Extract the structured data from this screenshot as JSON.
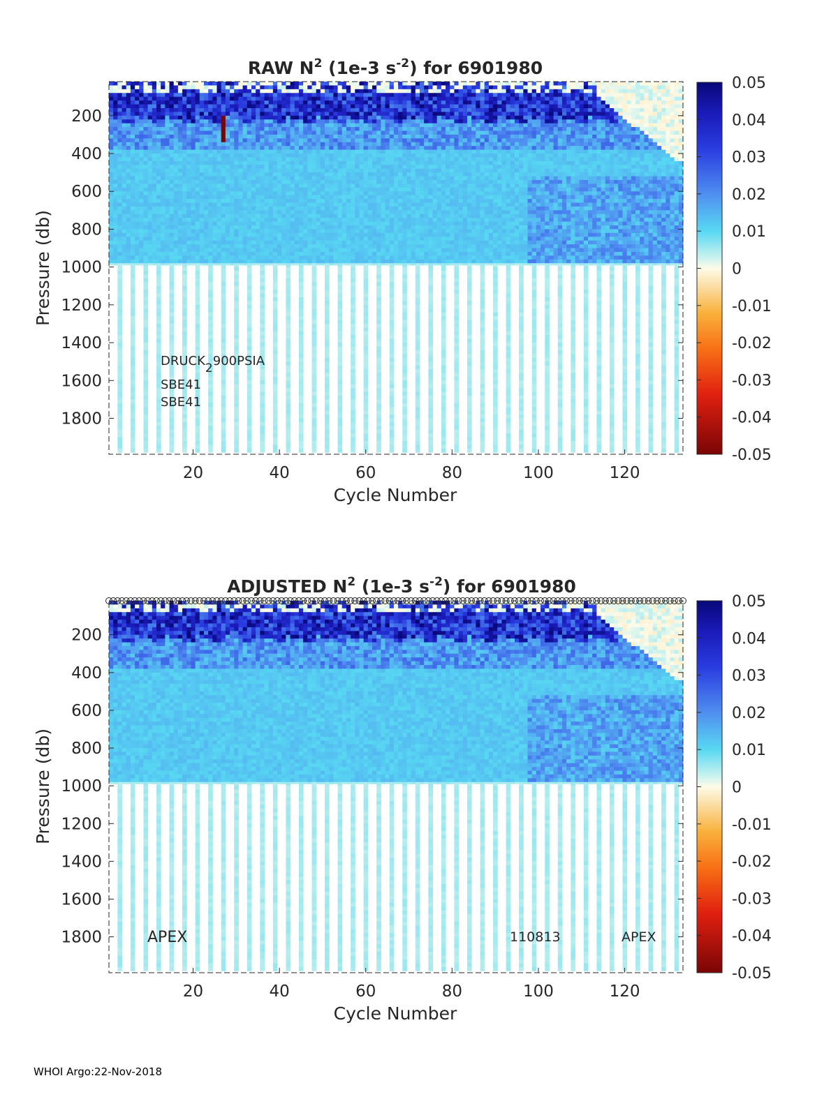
{
  "chart_data": [
    {
      "type": "heatmap",
      "title": "RAW N² (1e-3 s⁻²) for 6901980",
      "title_parts": {
        "prefix": "RAW N",
        "sup1": "2",
        "middle": " (1e-3 s",
        "sup2": "-2",
        "suffix": ") for 6901980"
      },
      "xlabel": "Cycle Number",
      "ylabel": "Pressure (db)",
      "xlim": [
        1,
        133
      ],
      "ylim": [
        1990,
        20
      ],
      "x_ticks": [
        "20",
        "40",
        "60",
        "80",
        "100",
        "120"
      ],
      "y_ticks": [
        "200",
        "400",
        "600",
        "800",
        "1000",
        "1200",
        "1400",
        "1600",
        "1800"
      ],
      "colorbar": {
        "min": -0.05,
        "max": 0.05,
        "ticks": [
          "0.05",
          "0.04",
          "0.03",
          "0.02",
          "0.01",
          "0",
          "-0.01",
          "-0.02",
          "-0.03",
          "-0.04",
          "-0.05"
        ]
      },
      "annotations": [
        "DRUCK",
        "2",
        "900PSIA",
        "SBE41",
        "SBE41"
      ],
      "strong_stratification_top_db": 40,
      "strong_stratification_bottom_db": 350,
      "pycnocline_shoaling_after_cycle": 113,
      "data_bottom_db": 1000
    },
    {
      "type": "heatmap",
      "title": "ADJUSTED N² (1e-3 s⁻²) for 6901980",
      "title_parts": {
        "prefix": "ADJUSTED N",
        "sup1": "2",
        "middle": " (1e-3 s",
        "sup2": "-2",
        "suffix": ") for 6901980"
      },
      "xlabel": "Cycle Number",
      "ylabel": "Pressure (db)",
      "xlim": [
        1,
        133
      ],
      "ylim": [
        1990,
        20
      ],
      "x_ticks": [
        "20",
        "40",
        "60",
        "80",
        "100",
        "120"
      ],
      "y_ticks": [
        "200",
        "400",
        "600",
        "800",
        "1000",
        "1200",
        "1400",
        "1600",
        "1800"
      ],
      "colorbar": {
        "min": -0.05,
        "max": 0.05,
        "ticks": [
          "0.05",
          "0.04",
          "0.03",
          "0.02",
          "0.01",
          "0",
          "-0.01",
          "-0.02",
          "-0.03",
          "-0.04",
          "-0.05"
        ]
      },
      "annotations": [
        "APEX",
        "110813",
        "APEX"
      ],
      "top_marker_row": "o",
      "data_bottom_db": 1000
    }
  ],
  "footer": "WHOI Argo:22-Nov-2018"
}
